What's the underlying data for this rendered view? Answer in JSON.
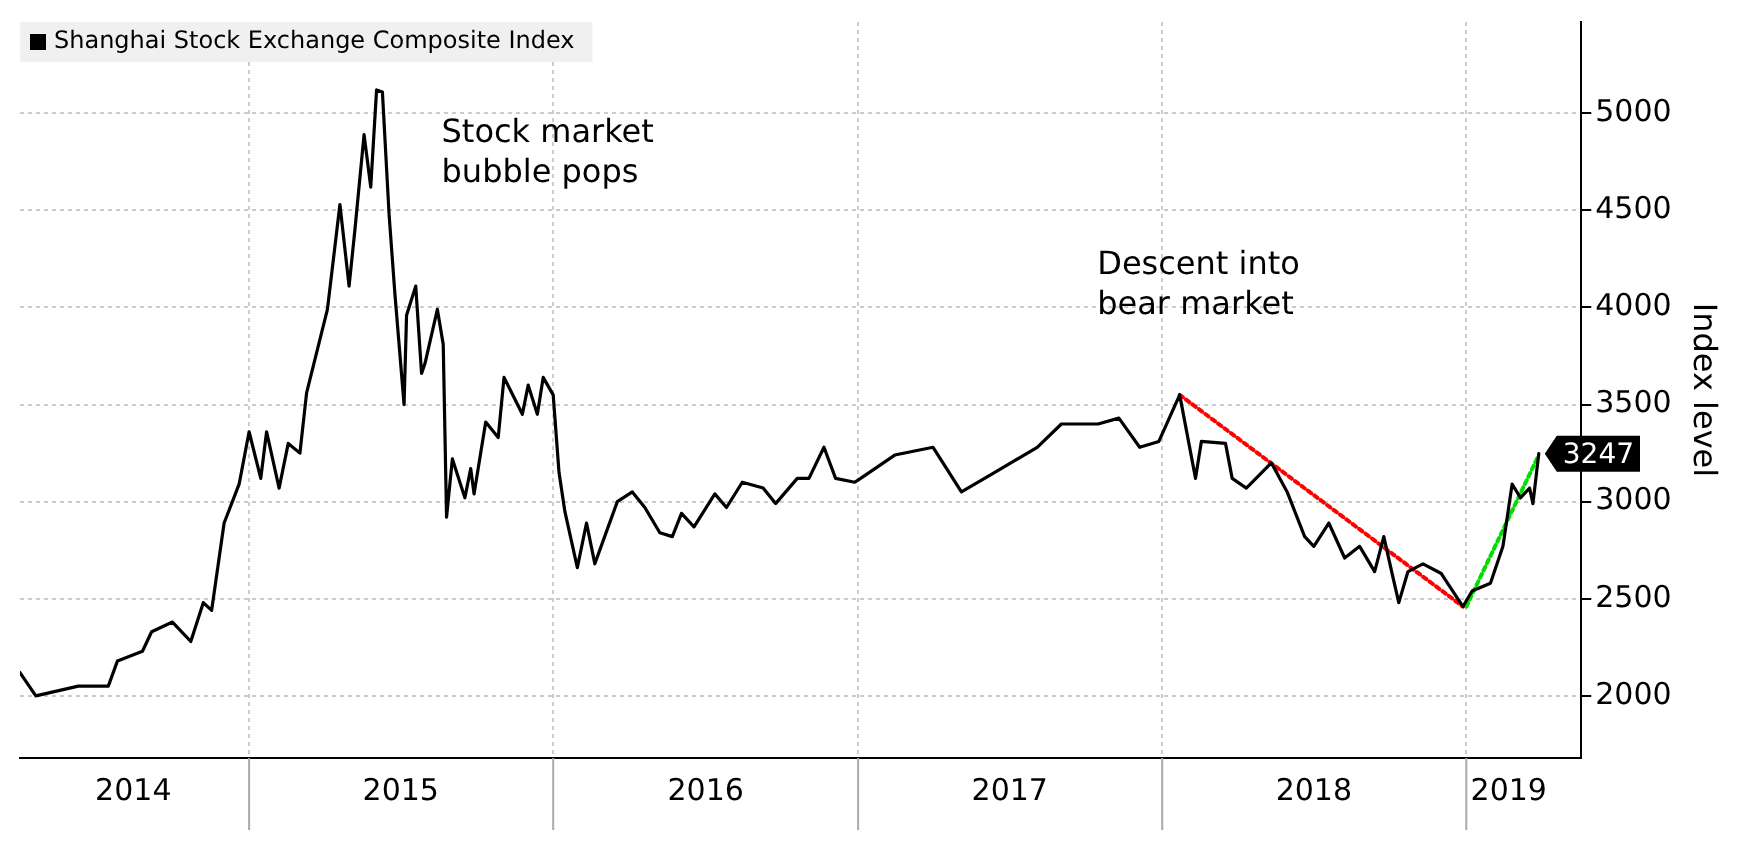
{
  "chart_data": {
    "type": "line",
    "ylabel": "Index level",
    "xlim": [
      "2014-04-01",
      "2019-05-19"
    ],
    "xticks": [
      {
        "value": "2014-08-15",
        "label": "2014"
      },
      {
        "value": "2015-01-01",
        "label": null
      },
      {
        "value": "2015-07-02",
        "label": "2015"
      },
      {
        "value": "2016-01-01",
        "label": null
      },
      {
        "value": "2016-07-02",
        "label": "2016"
      },
      {
        "value": "2017-01-01",
        "label": null
      },
      {
        "value": "2017-07-02",
        "label": "2017"
      },
      {
        "value": "2018-01-01",
        "label": null
      },
      {
        "value": "2018-07-02",
        "label": "2018"
      },
      {
        "value": "2019-01-01",
        "label": null
      },
      {
        "value": "2019-02-21",
        "label": "2019"
      }
    ],
    "ylim": [
      1680,
      5470
    ],
    "yticks": [
      2000,
      2500,
      3000,
      3500,
      4000,
      4500,
      5000
    ],
    "grid": true,
    "legend": "top left",
    "annotations": [
      "Stock market\nbubble pops",
      "Descent into\nbear market"
    ],
    "series": [
      {
        "name": "Shanghai Stock Exchange Composite Index",
        "color": "#000000",
        "x": [
          "2014-04-01",
          "2014-04-20",
          "2014-06-10",
          "2014-07-16",
          "2014-07-27",
          "2014-08-26",
          "2014-09-06",
          "2014-10-01",
          "2014-10-23",
          "2014-11-07",
          "2014-11-17",
          "2014-12-02",
          "2014-12-20",
          "2015-01-01",
          "2015-01-15",
          "2015-01-22",
          "2015-02-06",
          "2015-02-17",
          "2015-03-03",
          "2015-03-11",
          "2015-04-05",
          "2015-04-20",
          "2015-05-01",
          "2015-05-08",
          "2015-05-19",
          "2015-05-27",
          "2015-06-03",
          "2015-06-10",
          "2015-06-18",
          "2015-06-25",
          "2015-07-06",
          "2015-07-09",
          "2015-07-20",
          "2015-07-27",
          "2015-07-31",
          "2015-08-15",
          "2015-08-22",
          "2015-08-26",
          "2015-09-02",
          "2015-09-17",
          "2015-09-24",
          "2015-09-28",
          "2015-10-12",
          "2015-10-27",
          "2015-11-03",
          "2015-11-25",
          "2015-12-02",
          "2015-12-13",
          "2015-12-20",
          "2016-01-01",
          "2016-01-08",
          "2016-01-15",
          "2016-01-30",
          "2016-02-10",
          "2016-02-20",
          "2016-03-07",
          "2016-03-18",
          "2016-04-05",
          "2016-04-20",
          "2016-05-08",
          "2016-05-23",
          "2016-06-03",
          "2016-06-18",
          "2016-07-13",
          "2016-07-27",
          "2016-08-15",
          "2016-09-09",
          "2016-09-24",
          "2016-10-20",
          "2016-11-03",
          "2016-11-21",
          "2016-12-05",
          "2016-12-28",
          "2017-01-04",
          "2017-02-14",
          "2017-04-01",
          "2017-05-05",
          "2017-06-10",
          "2017-08-04",
          "2017-09-02",
          "2017-10-16",
          "2017-11-10",
          "2017-12-05",
          "2017-12-28",
          "2018-01-22",
          "2018-02-10",
          "2018-02-17",
          "2018-03-18",
          "2018-03-26",
          "2018-04-12",
          "2018-05-12",
          "2018-05-31",
          "2018-06-21",
          "2018-07-02",
          "2018-07-20",
          "2018-08-08",
          "2018-08-26",
          "2018-09-13",
          "2018-09-24",
          "2018-10-05",
          "2018-10-12",
          "2018-10-23",
          "2018-11-10",
          "2018-12-02",
          "2018-12-28",
          "2019-01-08",
          "2019-01-30",
          "2019-02-14",
          "2019-02-25",
          "2019-03-07",
          "2019-03-18",
          "2019-03-22",
          "2019-03-29"
        ],
        "values": [
          2120,
          2000,
          2050,
          2050,
          2180,
          2230,
          2330,
          2380,
          2280,
          2480,
          2440,
          2890,
          3090,
          3360,
          3120,
          3360,
          3070,
          3300,
          3250,
          3560,
          3990,
          4530,
          4110,
          4400,
          4890,
          4620,
          5120,
          5110,
          4480,
          4070,
          3500,
          3960,
          4110,
          3660,
          3710,
          3990,
          3810,
          2920,
          3220,
          3020,
          3170,
          3040,
          3410,
          3330,
          3640,
          3450,
          3600,
          3450,
          3640,
          3550,
          3150,
          2950,
          2660,
          2890,
          2680,
          2870,
          3000,
          3050,
          2970,
          2840,
          2820,
          2940,
          2870,
          3040,
          2970,
          3100,
          3070,
          2990,
          3120,
          3120,
          3280,
          3120,
          3100,
          3120,
          3240,
          3280,
          3050,
          3140,
          3280,
          3400,
          3400,
          3430,
          3280,
          3310,
          3550,
          3120,
          3310,
          3300,
          3120,
          3070,
          3200,
          3050,
          2820,
          2770,
          2890,
          2710,
          2770,
          2640,
          2820,
          2610,
          2480,
          2640,
          2680,
          2630,
          2460,
          2540,
          2580,
          2770,
          3090,
          3020,
          3070,
          2990,
          3247
        ],
        "value_labels": [
          null,
          null,
          null,
          null,
          null,
          null,
          null,
          null,
          null,
          null,
          null,
          null,
          null,
          null,
          null,
          null,
          null,
          null,
          null,
          null,
          null,
          null,
          null,
          null,
          null,
          null,
          null,
          null,
          null,
          null,
          null,
          null,
          null,
          null,
          null,
          null,
          null,
          null,
          null,
          null,
          null,
          null,
          null,
          null,
          null,
          null,
          null,
          null,
          null,
          null,
          null,
          null,
          null,
          null,
          null,
          null,
          null,
          null,
          null,
          null,
          null,
          null,
          null,
          null,
          null,
          null,
          null,
          null,
          null,
          null,
          null,
          null,
          null,
          null,
          null,
          null,
          null,
          null,
          null,
          null,
          null,
          null,
          null,
          null,
          null,
          null,
          null,
          null,
          null,
          null,
          null,
          null,
          null,
          null,
          null,
          null,
          null,
          null,
          null,
          null,
          null,
          null,
          null,
          null,
          null,
          null,
          null,
          null,
          null,
          null,
          null,
          null,
          "3247"
        ]
      },
      {
        "color": "#ff0000",
        "line_style": "dotted",
        "x": [
          "2018-01-22",
          "2018-12-28"
        ],
        "values": [
          3550,
          2460
        ]
      },
      {
        "color": "#00dd00",
        "line_style": "dotted",
        "x": [
          "2019-01-01",
          "2019-03-29"
        ],
        "values": [
          2460,
          3240
        ]
      }
    ]
  }
}
